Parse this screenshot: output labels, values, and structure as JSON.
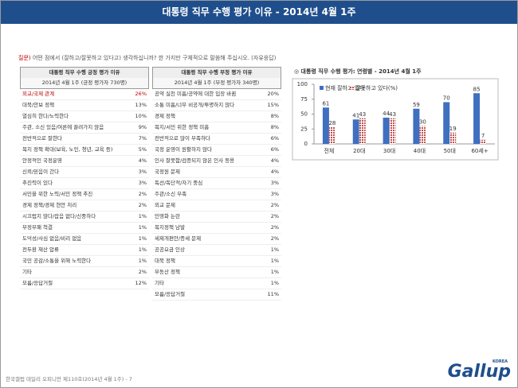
{
  "header": {
    "title": "대통령 직무 수행 평가 이유 - 2014년 4월 1주"
  },
  "question": {
    "label": "질문)",
    "text": "어떤 점에서 (잘하고/잘못하고 있다고) 생각하십니까? 한 가지만 구체적으로 말씀해 주십시오. (자유응답)"
  },
  "positive_table": {
    "title": "대통령 직무 수행 긍정 평가 이유",
    "subtitle": "2014년 4월 1주 (긍정 평가자 730명)",
    "rows": [
      [
        "외교/국제 관계",
        "26%"
      ],
      [
        "대북/안보 정책",
        "13%"
      ],
      [
        "열심히 한다/노력한다",
        "10%"
      ],
      [
        "주관, 소신 있음/여론에 끌려가지 않음",
        "9%"
      ],
      [
        "전반적으로 잘한다",
        "7%"
      ],
      [
        "복지 정책 확대(보육, 노인, 청년, 교육 등)",
        "5%"
      ],
      [
        "안정적인 국정운영",
        "4%"
      ],
      [
        "신뢰/믿음이 간다",
        "3%"
      ],
      [
        "추진력이 있다",
        "3%"
      ],
      [
        "서민을 위한 노력/서민 정책 추진",
        "2%"
      ],
      [
        "경제 정책/경제 현안 처리",
        "2%"
      ],
      [
        "시끄럽지 않다/잡음 없다/신중하다",
        "1%"
      ],
      [
        "부정부패 척결",
        "1%"
      ],
      [
        "도덕성/사심 없음/비리 없음",
        "1%"
      ],
      [
        "전두환 재산 압류",
        "1%"
      ],
      [
        "국민 공감/소통을 위해 노력한다",
        "1%"
      ],
      [
        "기타",
        "2%"
      ],
      [
        "모름/응답거절",
        "12%"
      ]
    ]
  },
  "negative_table": {
    "title": "대통령 직무 수행 부정 평가 이유",
    "subtitle": "2014년 4월 1주 (부정 평가자 340명)",
    "rows": [
      [
        "공약 실천 미흡/공약에 대한 입장 바뀜",
        "20%"
      ],
      [
        "소통 미흡/너무 비공개/투명하지 않다",
        "15%"
      ],
      [
        "경제 정책",
        "8%"
      ],
      [
        "복지/서민 위한 정책 미흡",
        "8%"
      ],
      [
        "전반적으로 많이 부족하다",
        "6%"
      ],
      [
        "국정 운영이 원활하지 않다",
        "6%"
      ],
      [
        "인사 잘못함/검증되지 않은 인사 등용",
        "4%"
      ],
      [
        "국정원 문제",
        "4%"
      ],
      [
        "독선/독단적/자기 중심",
        "3%"
      ],
      [
        "주관/소신 부족",
        "3%"
      ],
      [
        "외교 문제",
        "2%"
      ],
      [
        "민영화 논란",
        "2%"
      ],
      [
        "복지정책 남발",
        "2%"
      ],
      [
        "세제개편안/증세 문제",
        "2%"
      ],
      [
        "공공요금 인상",
        "1%"
      ],
      [
        "대북 정책",
        "1%"
      ],
      [
        "부동산 정책",
        "1%"
      ],
      [
        "기타",
        "1%"
      ],
      [
        "모름/응답거절",
        "11%"
      ]
    ]
  },
  "chart_data": {
    "type": "bar",
    "title": "◎ 대통령 직무 수행 평가: 연령별 - 2014년 4월 1주",
    "categories": [
      "전체",
      "20대",
      "30대",
      "40대",
      "50대",
      "60세+"
    ],
    "series": [
      {
        "name": "현재 잘하고 있다",
        "color": "#3f6fc0",
        "values": [
          61,
          41,
          44,
          59,
          70,
          85
        ]
      },
      {
        "name": "잘못하고 있다(%)",
        "color": "#c0504d",
        "values": [
          28,
          43,
          43,
          30,
          19,
          7
        ]
      }
    ],
    "ylim": [
      0,
      100
    ],
    "yticks": [
      0,
      25,
      50,
      75,
      100
    ]
  },
  "footer": {
    "text": "한국갤럽 데일리 오피니언 제110호(2014년 4월 1주) - 7"
  },
  "logo": {
    "text": "Gallup",
    "sub": "KOREA"
  }
}
